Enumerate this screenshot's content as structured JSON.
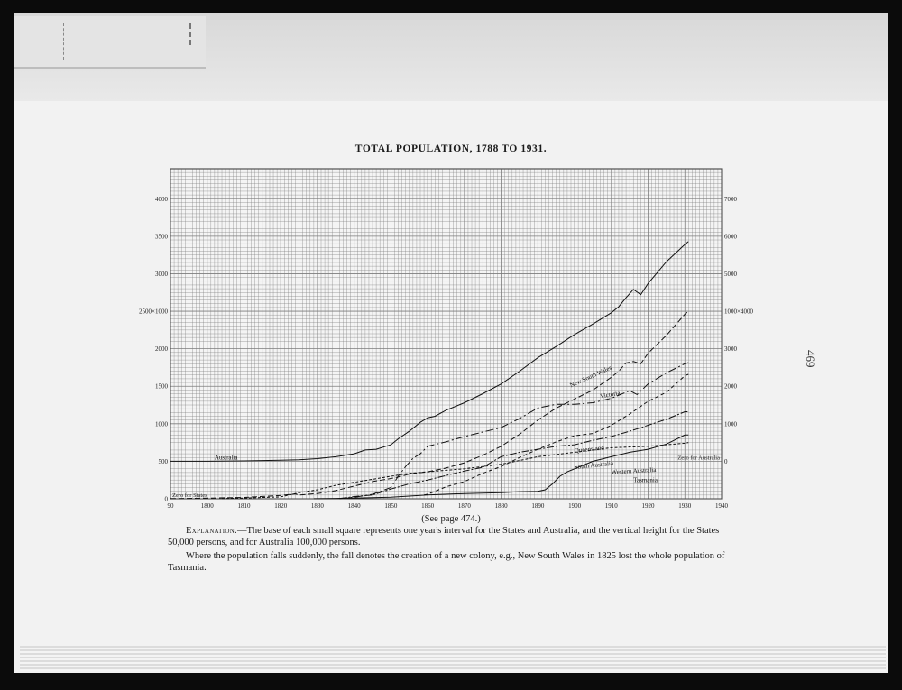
{
  "title": "TOTAL POPULATION, 1788 TO 1931.",
  "see_page": "(See page 474.)",
  "explanation": {
    "head": "Explanation.",
    "p1": "—The base of each small square represents one year's interval for the States and Australia, and the vertical height for the States 50,000 persons, and for Australia 100,000 persons.",
    "p2": "Where the population falls suddenly, the fall denotes the creation of a new colony, e.g., New South Wales in 1825 lost the whole population of Tasmania."
  },
  "page_number": "469",
  "chart_data": {
    "type": "line",
    "xlim": [
      1790,
      1940
    ],
    "x_ticks": [
      "90",
      "1800",
      "1810",
      "1820",
      "1830",
      "1840",
      "1850",
      "1860",
      "1870",
      "1880",
      "1890",
      "1900",
      "1910",
      "1920",
      "1930",
      "1940"
    ],
    "left_axis": {
      "ylim": [
        0,
        4400
      ],
      "ticks": [
        {
          "value": 0,
          "label": "0"
        },
        {
          "value": 500,
          "label": "500"
        },
        {
          "value": 1000,
          "label": "1000"
        },
        {
          "value": 1500,
          "label": "1500"
        },
        {
          "value": 2000,
          "label": "2000"
        },
        {
          "value": 2500,
          "label": "2500×1000"
        },
        {
          "value": 3000,
          "label": "3000"
        },
        {
          "value": 3500,
          "label": "3500"
        },
        {
          "value": 4000,
          "label": "4000"
        }
      ]
    },
    "right_axis": {
      "ticks": [
        {
          "value": 500,
          "label": "0"
        },
        {
          "value": 1000,
          "label": "1000"
        },
        {
          "value": 1500,
          "label": "2000"
        },
        {
          "value": 2000,
          "label": "3000"
        },
        {
          "value": 2500,
          "label": "1000×4000"
        },
        {
          "value": 3000,
          "label": "5000"
        },
        {
          "value": 3500,
          "label": "6000"
        },
        {
          "value": 4000,
          "label": "7000"
        }
      ]
    },
    "annotations": {
      "zero_states": "Zero for States",
      "zero_australia": "Zero for Australia"
    },
    "grid": true,
    "series": [
      {
        "name": "Australia",
        "label_x": 1802,
        "label_y": 520,
        "label_angle": 0,
        "dash": "",
        "x": [
          1790,
          1800,
          1810,
          1820,
          1825,
          1830,
          1835,
          1840,
          1843,
          1846,
          1850,
          1852,
          1855,
          1858,
          1860,
          1862,
          1865,
          1870,
          1875,
          1880,
          1885,
          1890,
          1895,
          1900,
          1905,
          1908,
          1910,
          1912,
          1914,
          1916,
          1918,
          1920,
          1925,
          1930,
          1931
        ],
        "y": [
          500,
          500,
          505,
          513,
          520,
          535,
          560,
          600,
          650,
          660,
          720,
          800,
          900,
          1020,
          1080,
          1100,
          1180,
          1280,
          1400,
          1530,
          1700,
          1880,
          2030,
          2190,
          2330,
          2420,
          2480,
          2560,
          2680,
          2790,
          2720,
          2870,
          3160,
          3390,
          3430
        ]
      },
      {
        "name": "New South Wales",
        "label_x": 1899,
        "label_y": 1485,
        "label_angle": -24,
        "dash": "6,3",
        "x": [
          1790,
          1800,
          1810,
          1820,
          1824,
          1825,
          1830,
          1835,
          1840,
          1845,
          1850,
          1852,
          1855,
          1860,
          1865,
          1870,
          1875,
          1880,
          1885,
          1890,
          1895,
          1900,
          1905,
          1910,
          1912,
          1914,
          1916,
          1918,
          1920,
          1925,
          1930,
          1931
        ],
        "y": [
          3,
          8,
          18,
          45,
          65,
          50,
          70,
          110,
          170,
          230,
          270,
          290,
          330,
          360,
          410,
          480,
          580,
          700,
          860,
          1050,
          1210,
          1330,
          1450,
          1620,
          1700,
          1810,
          1830,
          1800,
          1940,
          2180,
          2460,
          2500
        ]
      },
      {
        "name": "Victoria",
        "label_x": 1907,
        "label_y": 1340,
        "label_angle": -10,
        "dash": "9,3,2,3",
        "x": [
          1836,
          1840,
          1845,
          1850,
          1852,
          1854,
          1856,
          1858,
          1860,
          1865,
          1870,
          1875,
          1880,
          1885,
          1890,
          1895,
          1900,
          1905,
          1910,
          1915,
          1917,
          1920,
          1925,
          1930,
          1931
        ],
        "y": [
          5,
          20,
          60,
          150,
          300,
          430,
          540,
          600,
          700,
          760,
          830,
          890,
          950,
          1070,
          1210,
          1260,
          1260,
          1280,
          1340,
          1440,
          1390,
          1530,
          1680,
          1800,
          1815
        ]
      },
      {
        "name": "Queensland",
        "label_x": 1900,
        "label_y": 615,
        "label_angle": -6,
        "dash": "4,3",
        "x": [
          1859,
          1860,
          1865,
          1870,
          1875,
          1880,
          1885,
          1890,
          1895,
          1900,
          1905,
          1910,
          1915,
          1920,
          1925,
          1930,
          1931
        ],
        "y": [
          50,
          60,
          160,
          230,
          340,
          430,
          550,
          660,
          760,
          840,
          870,
          980,
          1130,
          1300,
          1420,
          1640,
          1660
        ]
      },
      {
        "name": "South Australia",
        "label_x": 1900,
        "label_y": 395,
        "label_angle": -6,
        "dash": "8,2,2,2",
        "x": [
          1836,
          1840,
          1845,
          1850,
          1855,
          1860,
          1865,
          1870,
          1875,
          1880,
          1885,
          1890,
          1895,
          1900,
          1905,
          1910,
          1915,
          1920,
          1925,
          1930,
          1931
        ],
        "y": [
          1,
          30,
          50,
          130,
          200,
          250,
          310,
          370,
          420,
          560,
          620,
          660,
          700,
          720,
          780,
          830,
          900,
          980,
          1060,
          1160,
          1160
        ]
      },
      {
        "name": "Western Australia",
        "label_x": 1910,
        "label_y": 330,
        "label_angle": -3,
        "dash": "",
        "x": [
          1829,
          1835,
          1840,
          1850,
          1860,
          1870,
          1880,
          1885,
          1890,
          1892,
          1894,
          1896,
          1898,
          1900,
          1905,
          1910,
          1915,
          1920,
          1925,
          1930,
          1931
        ],
        "y": [
          1,
          5,
          10,
          20,
          50,
          70,
          80,
          95,
          100,
          120,
          200,
          300,
          360,
          400,
          500,
          560,
          620,
          660,
          730,
          850,
          850
        ]
      },
      {
        "name": "Tasmania",
        "label_x": 1916,
        "label_y": 220,
        "label_angle": 0,
        "dash": "3,2",
        "x": [
          1804,
          1810,
          1820,
          1825,
          1830,
          1835,
          1840,
          1845,
          1850,
          1855,
          1860,
          1870,
          1880,
          1890,
          1900,
          1910,
          1920,
          1930,
          1931
        ],
        "y": [
          2,
          10,
          25,
          80,
          120,
          180,
          220,
          260,
          300,
          340,
          360,
          400,
          460,
          560,
          620,
          680,
          700,
          740,
          750
        ]
      }
    ]
  }
}
